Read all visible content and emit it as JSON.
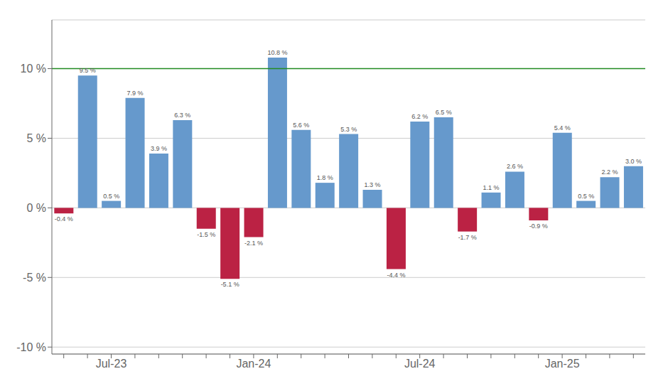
{
  "chart_data": {
    "type": "bar",
    "categories": [
      null,
      null,
      "Jul-23",
      null,
      null,
      null,
      null,
      null,
      "Jan-24",
      null,
      null,
      null,
      null,
      null,
      null,
      "Jul-24",
      null,
      null,
      null,
      null,
      null,
      "Jan-25",
      null,
      null,
      null
    ],
    "values": [
      -0.4,
      9.5,
      0.5,
      7.9,
      3.9,
      6.3,
      -1.5,
      -5.1,
      -2.1,
      10.8,
      5.6,
      1.8,
      5.3,
      1.3,
      -4.4,
      6.2,
      6.5,
      -1.7,
      1.1,
      2.6,
      -0.9,
      5.4,
      0.5,
      2.2,
      3.0
    ],
    "value_labels": [
      "-0.4 %",
      "9.5 %",
      "0.5 %",
      "7.9 %",
      "3.9 %",
      "6.3 %",
      "-1.5 %",
      "-5.1 %",
      "-2.1 %",
      "10.8 %",
      "5.6 %",
      "1.8 %",
      "5.3 %",
      "1.3 %",
      "-4.4 %",
      "6.2 %",
      "6.5 %",
      "-1.7 %",
      "1.1 %",
      "2.6 %",
      "-0.9 %",
      "5.4 %",
      "0.5 %",
      "2.2 %",
      "3.0 %"
    ],
    "colors": [
      "#BB2244",
      "#6699CC",
      "#6699CC",
      "#6699CC",
      "#6699CC",
      "#6699CC",
      "#BB2244",
      "#BB2244",
      "#BB2244",
      "#6699CC",
      "#6699CC",
      "#6699CC",
      "#6699CC",
      "#6699CC",
      "#BB2244",
      "#6699CC",
      "#6699CC",
      "#BB2244",
      "#6699CC",
      "#6699CC",
      "#BB2244",
      "#6699CC",
      "#6699CC",
      "#6699CC",
      "#6699CC"
    ],
    "data_labels": true,
    "hlines": [
      {
        "value": 10,
        "color": "#228B22"
      }
    ],
    "ylim": [
      -10.5,
      13.5
    ],
    "yticks": [
      {
        "value": -10,
        "label": "-10 %"
      },
      {
        "value": -5,
        "label": "-5 %"
      },
      {
        "value": 0,
        "label": "0 %"
      },
      {
        "value": 5,
        "label": "5 %"
      },
      {
        "value": 10,
        "label": "10 %"
      }
    ],
    "grid": true
  }
}
